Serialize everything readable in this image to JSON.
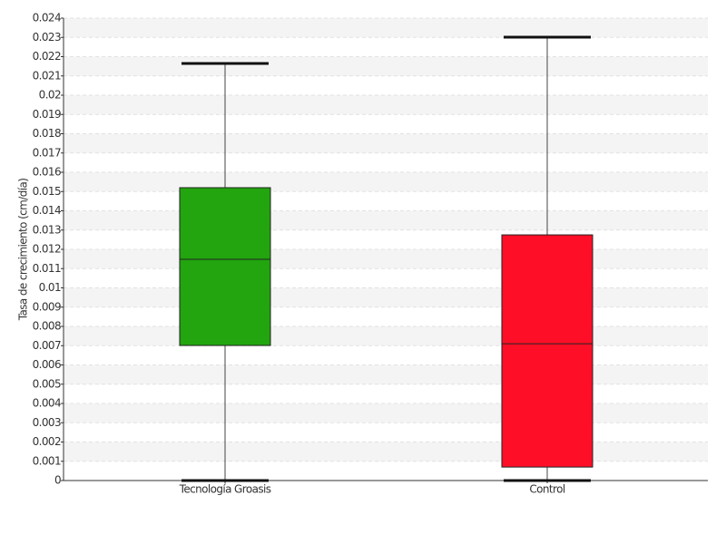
{
  "chart_data": {
    "type": "box",
    "y_label": "Tasa de crecimiento (cm/día)",
    "categories": [
      "Tecnología Groasis",
      "Control"
    ],
    "boxes": [
      {
        "min": 0,
        "q1": 0.00701,
        "median": 0.01148,
        "q3": 0.0152,
        "max": 0.02165,
        "color": "#22a50f"
      },
      {
        "min": 0,
        "q1": 0.0007,
        "median": 0.0071,
        "q3": 0.01275,
        "max": 0.02301,
        "color": "#ff0f27"
      }
    ],
    "ylim": [
      0,
      0.024
    ],
    "yticks": [
      0,
      0.001,
      0.002,
      0.003,
      0.004,
      0.005,
      0.006,
      0.007,
      0.008,
      0.009,
      0.01,
      0.011,
      0.012,
      0.013,
      0.014,
      0.015,
      0.016,
      0.017,
      0.018,
      0.019,
      0.02,
      0.021,
      0.022,
      0.023,
      0.024
    ],
    "grid": true
  }
}
